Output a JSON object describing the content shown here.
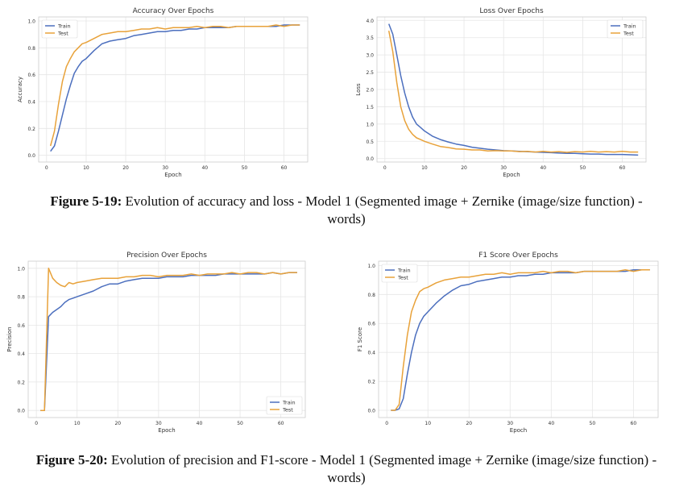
{
  "captions": {
    "fig19": {
      "label": "Figure 5-19:",
      "text": " Evolution of accuracy and loss - Model 1 (Segmented image + Zernike (image/size function) - words)"
    },
    "fig20": {
      "label": "Figure 5-20:",
      "text": " Evolution of precision and F1-score - Model 1 (Segmented image + Zernike (image/size function) - words)"
    }
  },
  "colors": {
    "train": "#4c6fbe",
    "test": "#e8a23a",
    "grid": "#e6e6e6",
    "axis": "#cccccc"
  },
  "chart_data": [
    {
      "id": "accuracy",
      "type": "line",
      "title": "Accuracy Over Epochs",
      "xlabel": "Epoch",
      "ylabel": "Accuracy",
      "xlim": [
        -2,
        66
      ],
      "ylim": [
        -0.05,
        1.03
      ],
      "xticks": [
        0,
        10,
        20,
        30,
        40,
        50,
        60
      ],
      "yticks": [
        0.0,
        0.2,
        0.4,
        0.6,
        0.8,
        1.0
      ],
      "ytick_labels": [
        "0.0",
        "0.2",
        "0.4",
        "0.6",
        "0.8",
        "1.0"
      ],
      "grid": true,
      "legend": "top-left",
      "series": [
        {
          "name": "Train",
          "x": [
            1,
            2,
            3,
            4,
            5,
            6,
            7,
            8,
            9,
            10,
            12,
            14,
            16,
            18,
            20,
            22,
            24,
            26,
            28,
            30,
            32,
            34,
            36,
            38,
            40,
            42,
            44,
            46,
            48,
            50,
            52,
            54,
            56,
            58,
            60,
            62,
            64
          ],
          "values": [
            0.03,
            0.07,
            0.18,
            0.3,
            0.42,
            0.52,
            0.61,
            0.66,
            0.7,
            0.72,
            0.78,
            0.83,
            0.85,
            0.86,
            0.87,
            0.89,
            0.9,
            0.91,
            0.92,
            0.92,
            0.93,
            0.93,
            0.94,
            0.94,
            0.95,
            0.95,
            0.95,
            0.95,
            0.96,
            0.96,
            0.96,
            0.96,
            0.96,
            0.96,
            0.97,
            0.97,
            0.97
          ]
        },
        {
          "name": "Test",
          "x": [
            1,
            2,
            3,
            4,
            5,
            6,
            7,
            8,
            9,
            10,
            12,
            14,
            16,
            18,
            20,
            22,
            24,
            26,
            28,
            30,
            32,
            34,
            36,
            38,
            40,
            42,
            44,
            46,
            48,
            50,
            52,
            54,
            56,
            58,
            60,
            62,
            64
          ],
          "values": [
            0.07,
            0.18,
            0.38,
            0.55,
            0.66,
            0.72,
            0.77,
            0.8,
            0.83,
            0.84,
            0.87,
            0.9,
            0.91,
            0.92,
            0.92,
            0.93,
            0.94,
            0.94,
            0.95,
            0.94,
            0.95,
            0.95,
            0.95,
            0.96,
            0.95,
            0.96,
            0.96,
            0.95,
            0.96,
            0.96,
            0.96,
            0.96,
            0.96,
            0.97,
            0.96,
            0.97,
            0.97
          ]
        }
      ]
    },
    {
      "id": "loss",
      "type": "line",
      "title": "Loss Over Epochs",
      "xlabel": "Epoch",
      "ylabel": "Loss",
      "xlim": [
        -2,
        66
      ],
      "ylim": [
        -0.1,
        4.1
      ],
      "xticks": [
        0,
        10,
        20,
        30,
        40,
        50,
        60
      ],
      "yticks": [
        0.0,
        0.5,
        1.0,
        1.5,
        2.0,
        2.5,
        3.0,
        3.5,
        4.0
      ],
      "ytick_labels": [
        "0.0",
        "0.5",
        "1.0",
        "1.5",
        "2.0",
        "2.5",
        "3.0",
        "3.5",
        "4.0"
      ],
      "grid": true,
      "legend": "top-right",
      "series": [
        {
          "name": "Train",
          "x": [
            1,
            2,
            3,
            4,
            5,
            6,
            7,
            8,
            9,
            10,
            12,
            14,
            16,
            18,
            20,
            22,
            24,
            26,
            28,
            30,
            32,
            34,
            36,
            38,
            40,
            42,
            44,
            46,
            48,
            50,
            52,
            54,
            56,
            58,
            60,
            62,
            64
          ],
          "values": [
            3.9,
            3.6,
            3.0,
            2.4,
            1.9,
            1.5,
            1.2,
            1.0,
            0.9,
            0.8,
            0.65,
            0.55,
            0.48,
            0.42,
            0.38,
            0.33,
            0.3,
            0.27,
            0.25,
            0.23,
            0.22,
            0.21,
            0.2,
            0.19,
            0.18,
            0.17,
            0.16,
            0.15,
            0.15,
            0.14,
            0.13,
            0.13,
            0.12,
            0.12,
            0.12,
            0.11,
            0.1
          ]
        },
        {
          "name": "Test",
          "x": [
            1,
            2,
            3,
            4,
            5,
            6,
            7,
            8,
            9,
            10,
            12,
            14,
            16,
            18,
            20,
            22,
            24,
            26,
            28,
            30,
            32,
            34,
            36,
            38,
            40,
            42,
            44,
            46,
            48,
            50,
            52,
            54,
            56,
            58,
            60,
            62,
            64
          ],
          "values": [
            3.7,
            3.1,
            2.2,
            1.5,
            1.1,
            0.85,
            0.7,
            0.6,
            0.55,
            0.5,
            0.42,
            0.35,
            0.32,
            0.28,
            0.27,
            0.25,
            0.25,
            0.22,
            0.23,
            0.22,
            0.22,
            0.2,
            0.21,
            0.19,
            0.21,
            0.19,
            0.2,
            0.18,
            0.2,
            0.19,
            0.21,
            0.19,
            0.2,
            0.19,
            0.21,
            0.19,
            0.19
          ]
        }
      ]
    },
    {
      "id": "precision",
      "type": "line",
      "title": "Precision Over Epochs",
      "xlabel": "Epoch",
      "ylabel": "Precision",
      "xlim": [
        -2,
        66
      ],
      "ylim": [
        -0.05,
        1.05
      ],
      "xticks": [
        0,
        10,
        20,
        30,
        40,
        50,
        60
      ],
      "yticks": [
        0.0,
        0.2,
        0.4,
        0.6,
        0.8,
        1.0
      ],
      "ytick_labels": [
        "0.0",
        "0.2",
        "0.4",
        "0.6",
        "0.8",
        "1.0"
      ],
      "grid": true,
      "legend": "bottom-right",
      "series": [
        {
          "name": "Train",
          "x": [
            1,
            2,
            3,
            4,
            5,
            6,
            7,
            8,
            9,
            10,
            12,
            14,
            16,
            18,
            20,
            22,
            24,
            26,
            28,
            30,
            32,
            34,
            36,
            38,
            40,
            42,
            44,
            46,
            48,
            50,
            52,
            54,
            56,
            58,
            60,
            62,
            64
          ],
          "values": [
            0.0,
            0.0,
            0.66,
            0.69,
            0.71,
            0.73,
            0.76,
            0.78,
            0.79,
            0.8,
            0.82,
            0.84,
            0.87,
            0.89,
            0.89,
            0.91,
            0.92,
            0.93,
            0.93,
            0.93,
            0.94,
            0.94,
            0.94,
            0.95,
            0.95,
            0.95,
            0.95,
            0.96,
            0.96,
            0.96,
            0.96,
            0.96,
            0.96,
            0.97,
            0.96,
            0.97,
            0.97
          ]
        },
        {
          "name": "Test",
          "x": [
            1,
            2,
            3,
            4,
            5,
            6,
            7,
            8,
            9,
            10,
            12,
            14,
            16,
            18,
            20,
            22,
            24,
            26,
            28,
            30,
            32,
            34,
            36,
            38,
            40,
            42,
            44,
            46,
            48,
            50,
            52,
            54,
            56,
            58,
            60,
            62,
            64
          ],
          "values": [
            0.0,
            0.0,
            1.0,
            0.93,
            0.9,
            0.88,
            0.87,
            0.9,
            0.89,
            0.9,
            0.91,
            0.92,
            0.93,
            0.93,
            0.93,
            0.94,
            0.94,
            0.95,
            0.95,
            0.94,
            0.95,
            0.95,
            0.95,
            0.96,
            0.95,
            0.96,
            0.96,
            0.96,
            0.97,
            0.96,
            0.97,
            0.97,
            0.96,
            0.97,
            0.96,
            0.97,
            0.97
          ]
        }
      ]
    },
    {
      "id": "f1",
      "type": "line",
      "title": "F1 Score Over Epochs",
      "xlabel": "Epoch",
      "ylabel": "F1 Score",
      "xlim": [
        -2,
        66
      ],
      "ylim": [
        -0.05,
        1.03
      ],
      "xticks": [
        0,
        10,
        20,
        30,
        40,
        50,
        60
      ],
      "yticks": [
        0.0,
        0.2,
        0.4,
        0.6,
        0.8,
        1.0
      ],
      "ytick_labels": [
        "0.0",
        "0.2",
        "0.4",
        "0.6",
        "0.8",
        "1.0"
      ],
      "grid": true,
      "legend": "top-left",
      "series": [
        {
          "name": "Train",
          "x": [
            1,
            2,
            3,
            4,
            5,
            6,
            7,
            8,
            9,
            10,
            12,
            14,
            16,
            18,
            20,
            22,
            24,
            26,
            28,
            30,
            32,
            34,
            36,
            38,
            40,
            42,
            44,
            46,
            48,
            50,
            52,
            54,
            56,
            58,
            60,
            62,
            64
          ],
          "values": [
            0.0,
            0.0,
            0.01,
            0.08,
            0.25,
            0.4,
            0.52,
            0.6,
            0.65,
            0.68,
            0.74,
            0.79,
            0.83,
            0.86,
            0.87,
            0.89,
            0.9,
            0.91,
            0.92,
            0.92,
            0.93,
            0.93,
            0.94,
            0.94,
            0.95,
            0.95,
            0.95,
            0.95,
            0.96,
            0.96,
            0.96,
            0.96,
            0.96,
            0.96,
            0.97,
            0.97,
            0.97
          ]
        },
        {
          "name": "Test",
          "x": [
            1,
            2,
            3,
            4,
            5,
            6,
            7,
            8,
            9,
            10,
            12,
            14,
            16,
            18,
            20,
            22,
            24,
            26,
            28,
            30,
            32,
            34,
            36,
            38,
            40,
            42,
            44,
            46,
            48,
            50,
            52,
            54,
            56,
            58,
            60,
            62,
            64
          ],
          "values": [
            0.0,
            0.0,
            0.04,
            0.3,
            0.52,
            0.68,
            0.76,
            0.82,
            0.84,
            0.85,
            0.88,
            0.9,
            0.91,
            0.92,
            0.92,
            0.93,
            0.94,
            0.94,
            0.95,
            0.94,
            0.95,
            0.95,
            0.95,
            0.96,
            0.95,
            0.96,
            0.96,
            0.95,
            0.96,
            0.96,
            0.96,
            0.96,
            0.96,
            0.97,
            0.96,
            0.97,
            0.97
          ]
        }
      ]
    }
  ]
}
